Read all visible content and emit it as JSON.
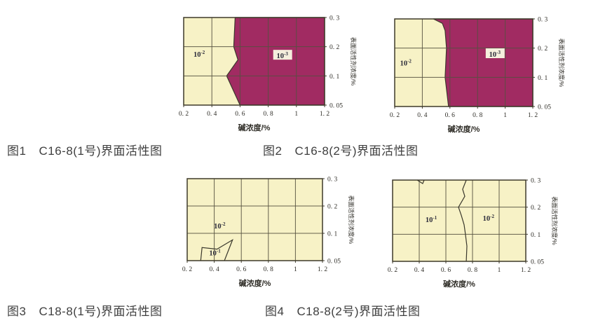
{
  "colors": {
    "page_bg": "#ffffff",
    "region_low": "#f7f2c6",
    "region_high": "#a12b62",
    "grid_line": "#55513f",
    "plot_border": "#3e3a2a",
    "contour_line": "#3a382c",
    "label_text": "#2c2c3a",
    "label_box_bg": "#f5efdd",
    "tick_text": "#2e2c26",
    "caption_text": "#3f3f3f"
  },
  "captions": [
    {
      "fig": "图1",
      "title": "C16-8(1号)界面活性图"
    },
    {
      "fig": "图2",
      "title": "C16-8(2号)界面活性图"
    },
    {
      "fig": "图3",
      "title": "C18-8(1号)界面活性图"
    },
    {
      "fig": "图4",
      "title": "C18-8(2号)界面活性图"
    }
  ],
  "chart_data": [
    {
      "type": "heatmap",
      "subtype": "interfacial-tension-region-map",
      "title": "图1 C16-8(1号)界面活性图",
      "xlabel": "碱浓度/%",
      "ylabel": "表面活性剂浓度/%",
      "x_range": [
        0.2,
        1.2
      ],
      "x_ticks": [
        0.2,
        0.4,
        0.6,
        0.8,
        1,
        1.2
      ],
      "x_tick_labels": [
        "0. 2",
        "0. 4",
        "0. 6",
        "0. 8",
        "1",
        "1. 2"
      ],
      "y_ticks": [
        0.05,
        0.1,
        0.2,
        0.3
      ],
      "y_tick_labels": [
        "0. 05",
        "0. 1",
        "0. 2",
        "0. 3"
      ],
      "grid": true,
      "regions": [
        {
          "value_base": "10",
          "value_exp": "-2",
          "label_x": 0.31,
          "label_y": 0.175,
          "boxed": false
        },
        {
          "value_base": "10",
          "value_exp": "-3",
          "label_x": 0.9,
          "label_y": 0.17,
          "boxed": true,
          "polygon": [
            [
              0.565,
              0.3
            ],
            [
              0.555,
              0.2
            ],
            [
              0.585,
              0.155
            ],
            [
              0.505,
              0.1
            ],
            [
              0.6,
              0.05
            ],
            [
              1.2,
              0.05
            ],
            [
              1.2,
              0.3
            ]
          ]
        }
      ],
      "contours": []
    },
    {
      "type": "heatmap",
      "subtype": "interfacial-tension-region-map",
      "title": "图2 C16-8(2号)界面活性图",
      "xlabel": "碱浓度/%",
      "ylabel": "表面活性剂浓度/%",
      "x_range": [
        0.2,
        1.2
      ],
      "x_ticks": [
        0.2,
        0.4,
        0.6,
        0.8,
        1,
        1.2
      ],
      "x_tick_labels": [
        "0. 2",
        "0. 4",
        "0. 6",
        "0. 8",
        "1",
        "1. 2"
      ],
      "y_ticks": [
        0.05,
        0.1,
        0.2,
        0.3
      ],
      "y_tick_labels": [
        "0. 05",
        "0. 1",
        "0. 2",
        "0. 3"
      ],
      "grid": true,
      "regions": [
        {
          "value_base": "10",
          "value_exp": "-2",
          "label_x": 0.28,
          "label_y": 0.15,
          "boxed": false
        },
        {
          "value_base": "10",
          "value_exp": "-3",
          "label_x": 0.925,
          "label_y": 0.18,
          "boxed": true,
          "polygon": [
            [
              0.48,
              0.3
            ],
            [
              0.545,
              0.285
            ],
            [
              0.565,
              0.26
            ],
            [
              0.575,
              0.2
            ],
            [
              0.565,
              0.1
            ],
            [
              0.59,
              0.05
            ],
            [
              1.2,
              0.05
            ],
            [
              1.2,
              0.3
            ]
          ]
        }
      ],
      "contours": []
    },
    {
      "type": "heatmap",
      "subtype": "interfacial-tension-region-map",
      "title": "图3 C18-8(1号)界面活性图",
      "xlabel": "碱浓度/%",
      "ylabel": "表面活性剂浓度/%",
      "x_range": [
        0.2,
        1.2
      ],
      "x_ticks": [
        0.2,
        0.4,
        0.6,
        0.8,
        1,
        1.2
      ],
      "x_tick_labels": [
        "0. 2",
        "0. 4",
        "0. 6",
        "0. 8",
        "1",
        "1. 2"
      ],
      "y_ticks": [
        0.05,
        0.1,
        0.2,
        0.3
      ],
      "y_tick_labels": [
        "0. 05",
        "0. 1",
        "0. 2",
        "0. 3"
      ],
      "grid": true,
      "regions": [
        {
          "value_base": "10",
          "value_exp": "-2",
          "label_x": 0.44,
          "label_y": 0.128,
          "boxed": false
        },
        {
          "value_base": "10",
          "value_exp": "-1",
          "label_x": 0.405,
          "label_y": 0.065,
          "boxed": false
        }
      ],
      "contours": [
        [
          [
            0.3,
            0.05
          ],
          [
            0.31,
            0.074
          ],
          [
            0.42,
            0.071
          ],
          [
            0.535,
            0.088
          ],
          [
            0.475,
            0.05
          ]
        ]
      ]
    },
    {
      "type": "heatmap",
      "subtype": "interfacial-tension-region-map",
      "title": "图4 C18-8(2号)界面活性图",
      "xlabel": "碱浓度/%",
      "ylabel": "表面活性剂浓度/%",
      "x_range": [
        0.2,
        1.2
      ],
      "x_ticks": [
        0.2,
        0.4,
        0.6,
        0.8,
        1,
        1.2
      ],
      "x_tick_labels": [
        "0. 2",
        "0. 4",
        "0. 6",
        "0. 8",
        "1",
        "1. 2"
      ],
      "y_ticks": [
        0.05,
        0.1,
        0.2,
        0.3
      ],
      "y_tick_labels": [
        "0. 05",
        "0. 1",
        "0. 2",
        "0. 3"
      ],
      "grid": true,
      "regions": [
        {
          "value_base": "10",
          "value_exp": "-1",
          "label_x": 0.49,
          "label_y": 0.155,
          "boxed": false
        },
        {
          "value_base": "10",
          "value_exp": "-2",
          "label_x": 0.92,
          "label_y": 0.16,
          "boxed": false
        }
      ],
      "contours": [
        [
          [
            0.753,
            0.3
          ],
          [
            0.726,
            0.266
          ],
          [
            0.742,
            0.24
          ],
          [
            0.695,
            0.2
          ],
          [
            0.716,
            0.17
          ],
          [
            0.737,
            0.135
          ],
          [
            0.747,
            0.1
          ],
          [
            0.758,
            0.078
          ],
          [
            0.753,
            0.05
          ]
        ],
        [
          [
            0.385,
            0.3
          ],
          [
            0.426,
            0.287
          ],
          [
            0.437,
            0.3
          ]
        ]
      ]
    }
  ]
}
